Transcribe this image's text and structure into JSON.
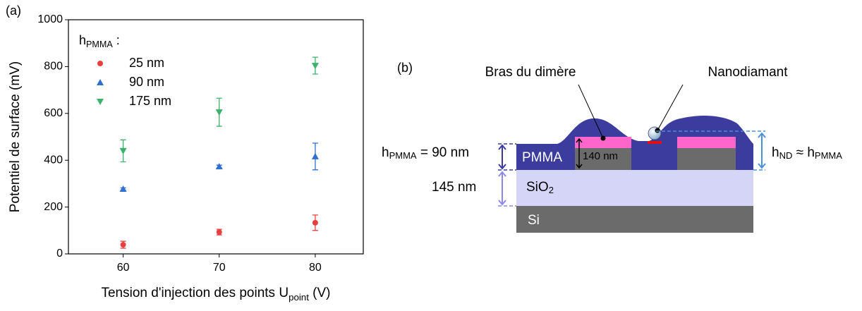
{
  "chart_data": {
    "type": "scatter",
    "panel_label": "(a)",
    "y_label": "Potentiel de surface (mV)",
    "x_label": {
      "text": "Tension d'injection des points U",
      "sub": "point",
      "suffix": " (V)"
    },
    "legend_title": {
      "text": "h",
      "sub": "PMMA",
      "suffix": " :"
    },
    "xlim": [
      54.3,
      85
    ],
    "xticks": [
      60,
      70,
      80
    ],
    "ylim": [
      0,
      1000
    ],
    "yticks": [
      0,
      200,
      400,
      600,
      800,
      1000
    ],
    "series": [
      {
        "name": "25 nm",
        "color": "#e8403f",
        "marker": "circle",
        "x": [
          60,
          70,
          80
        ],
        "values": [
          39,
          93,
          133
        ],
        "errors": [
          15,
          12,
          33
        ]
      },
      {
        "name": "90 nm",
        "color": "#2f6fd0",
        "marker": "triangle-up",
        "x": [
          60,
          70,
          80
        ],
        "values": [
          277,
          373,
          416
        ],
        "errors": [
          5,
          6,
          57
        ]
      },
      {
        "name": "175 nm",
        "color": "#3cb36a",
        "marker": "triangle-down",
        "x": [
          60,
          70,
          80
        ],
        "values": [
          440,
          605,
          804
        ],
        "errors": [
          47,
          60,
          36
        ]
      }
    ]
  },
  "diagram": {
    "panel_label": "(b)",
    "callout_arm": "Bras du dimère",
    "callout_nd": "Nanodiamant",
    "h_pmma": {
      "text": "h",
      "sub": "PMMA",
      "suffix": " = 90 nm"
    },
    "h_nd": {
      "text": "h",
      "sub": "ND",
      "mid": " ≈ h",
      "sub2": "PMMA"
    },
    "arm_height": "140 nm",
    "oxide_thickness": "145 nm",
    "layer_pmma": "PMMA",
    "layer_sio2": {
      "text": "SiO",
      "sub": "2"
    },
    "layer_si": "Si"
  }
}
